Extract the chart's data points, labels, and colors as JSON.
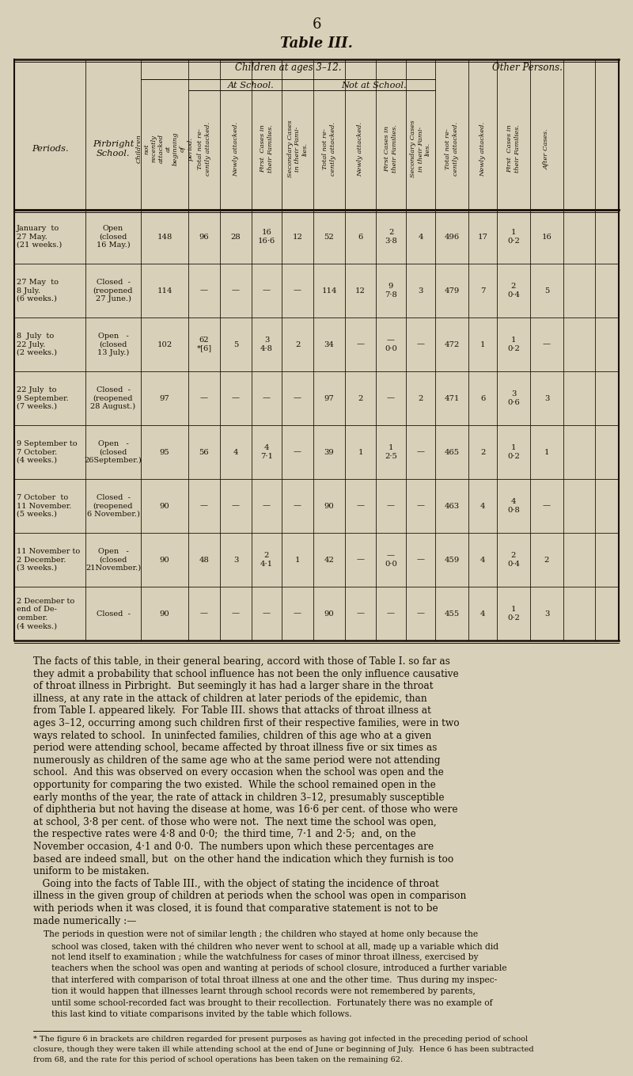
{
  "page_number": "6",
  "title": "Table III.",
  "bg_color": "#d8d0b8",
  "text_color": "#1a1008",
  "figsize": [
    8.0,
    13.59
  ],
  "dpi": 100,
  "table": {
    "rows": [
      {
        "period": "January  to\n27 May.\n(21 weeks.)",
        "school": "Open\n(closed\n16 May.)",
        "children": "148",
        "at_total": "96",
        "at_newly": "28",
        "at_first": "16\n16·6",
        "at_second": "12",
        "notat_total": "52",
        "notat_newly": "6",
        "notat_first": "2\n3·8",
        "notat_second": "4",
        "other_total": "496",
        "other_newly": "17",
        "other_first": "1\n0·2",
        "other_after": "16"
      },
      {
        "period": "27 May  to\n8 July.\n(6 weeks.)",
        "school": "Closed  -\n(reopened\n27 June.)",
        "children": "114",
        "at_total": "—",
        "at_newly": "—",
        "at_first": "—",
        "at_second": "—",
        "notat_total": "114",
        "notat_newly": "12",
        "notat_first": "9\n7·8",
        "notat_second": "3",
        "other_total": "479",
        "other_newly": "7",
        "other_first": "2\n0·4",
        "other_after": "5"
      },
      {
        "period": "8  July  to\n22 July.\n(2 weeks.)",
        "school": "Open   -\n(closed\n13 July.)",
        "children": "102",
        "at_total": "62\n*[6]",
        "at_newly": "5",
        "at_first": "3\n4·8",
        "at_second": "2",
        "notat_total": "34",
        "notat_newly": "—",
        "notat_first": "—\n0·0",
        "notat_second": "—",
        "other_total": "472",
        "other_newly": "1",
        "other_first": "1\n0·2",
        "other_after": "—"
      },
      {
        "period": "22 July  to\n9 September.\n(7 weeks.)",
        "school": "Closed  -\n(reopened\n28 August.)",
        "children": "97",
        "at_total": "—",
        "at_newly": "—",
        "at_first": "—",
        "at_second": "—",
        "notat_total": "97",
        "notat_newly": "2",
        "notat_first": "—",
        "notat_second": "2",
        "other_total": "471",
        "other_newly": "6",
        "other_first": "3\n0·6",
        "other_after": "3"
      },
      {
        "period": "9 September to\n7 October.\n(4 weeks.)",
        "school": "Open   -\n(closed\n26September.)",
        "children": "95",
        "at_total": "56",
        "at_newly": "4",
        "at_first": "4\n7·1",
        "at_second": "—",
        "notat_total": "39",
        "notat_newly": "1",
        "notat_first": "1\n2·5",
        "notat_second": "—",
        "other_total": "465",
        "other_newly": "2",
        "other_first": "1\n0·2",
        "other_after": "1"
      },
      {
        "period": "7 October  to\n11 November.\n(5 weeks.)",
        "school": "Closed  -\n(reopened\n6 November.)",
        "children": "90",
        "at_total": "—",
        "at_newly": "—",
        "at_first": "—",
        "at_second": "—",
        "notat_total": "90",
        "notat_newly": "—",
        "notat_first": "—",
        "notat_second": "—",
        "other_total": "463",
        "other_newly": "4",
        "other_first": "4\n0·8",
        "other_after": "—"
      },
      {
        "period": "11 November to\n2 December.\n(3 weeks.)",
        "school": "Open   -\n(closed\n21November.)",
        "children": "90",
        "at_total": "48",
        "at_newly": "3",
        "at_first": "2\n4·1",
        "at_second": "1",
        "notat_total": "42",
        "notat_newly": "—",
        "notat_first": "—\n0·0",
        "notat_second": "—",
        "other_total": "459",
        "other_newly": "4",
        "other_first": "2\n0·4",
        "other_after": "2"
      },
      {
        "period": "2 December to\nend of De-\ncember.\n(4 weeks.)",
        "school": "Closed  -",
        "children": "90",
        "at_total": "—",
        "at_newly": "—",
        "at_first": "—",
        "at_second": "—",
        "notat_total": "90",
        "notat_newly": "—",
        "notat_first": "—",
        "notat_second": "—",
        "other_total": "455",
        "other_newly": "4",
        "other_first": "1\n0·2",
        "other_after": "3"
      }
    ]
  },
  "body_text": [
    "The facts of this table, in their general bearing, accord with those of Table I. so far as",
    "they admit a probability that school influence has not been the only influence causative",
    "of throat illness in Pirbright.  But seemingly it has had a larger share in the throat",
    "illness, at any rate in the attack of children at later periods of the epidemic, than",
    "from Table I. appeared likely.  For Table III. shows that attacks of throat illness at",
    "ages 3–12, occurring among such children first of their respective families, were in two",
    "ways related to school.  In uninfected families, children of this age who at a given",
    "period were attending school, became affected by throat illness five or six times as",
    "numerously as children of the same age who at the same period were not attending",
    "school.  And this was observed on every occasion when the school was open and the",
    "opportunity for comparing the two existed.  While the school remained open in the",
    "early months of the year, the rate of attack in children 3–12, presumably susceptible",
    "of diphtheria but not having the disease at home, was 16·6 per cent. of those who were",
    "at school, 3·8 per cent. of those who were not.  The next time the school was open,",
    "the respective rates were 4·8 and 0·0;  the third time, 7·1 and 2·5;  and, on the",
    "November occasion, 4·1 and 0·0.  The numbers upon which these percentages are",
    "based are indeed small, but  on the other hand the indication which they furnish is too",
    "uniform to be mistaken.",
    "   Going into the facts of Table III., with the object of stating the incidence of throat",
    "illness in the given group of children at periods when the school was open in comparison",
    "with periods when it was closed, it is found that comparative statement is not to be",
    "made numerically :—"
  ],
  "indented_text": [
    "The periods in question were not of similar length ; the children who stayed at home only because the",
    "   school was closed, taken with thé children who never went to school at all, madȩ up a variable which did",
    "   not lend itself to examination ; while the watchfulness for cases of minor throat illness, exercised by",
    "   teachers when the school was open and wanting at periods of school closure, introduced a further variable",
    "   that interfered with comparison of total throat illness at one and the other time.  Thus during my inspec-",
    "   tion it would happen that illnesses learnt through school records were not remembered by parents,",
    "   until some school-recorded fact was brought to their recollection.  Fortunately there was no example of",
    "   this last kind to vitiate comparisons invited by the table which follows."
  ],
  "footnote_lines": [
    "* The figure 6 in brackets are children regarded for present purposes as having got infected in the preceding period of school",
    "closure, though they were taken ill while attending school at the end of June or beginning of July.  Hence 6 has been subtracted",
    "from 68, and the rate for this period of school operations has been taken on the remaining 62."
  ]
}
